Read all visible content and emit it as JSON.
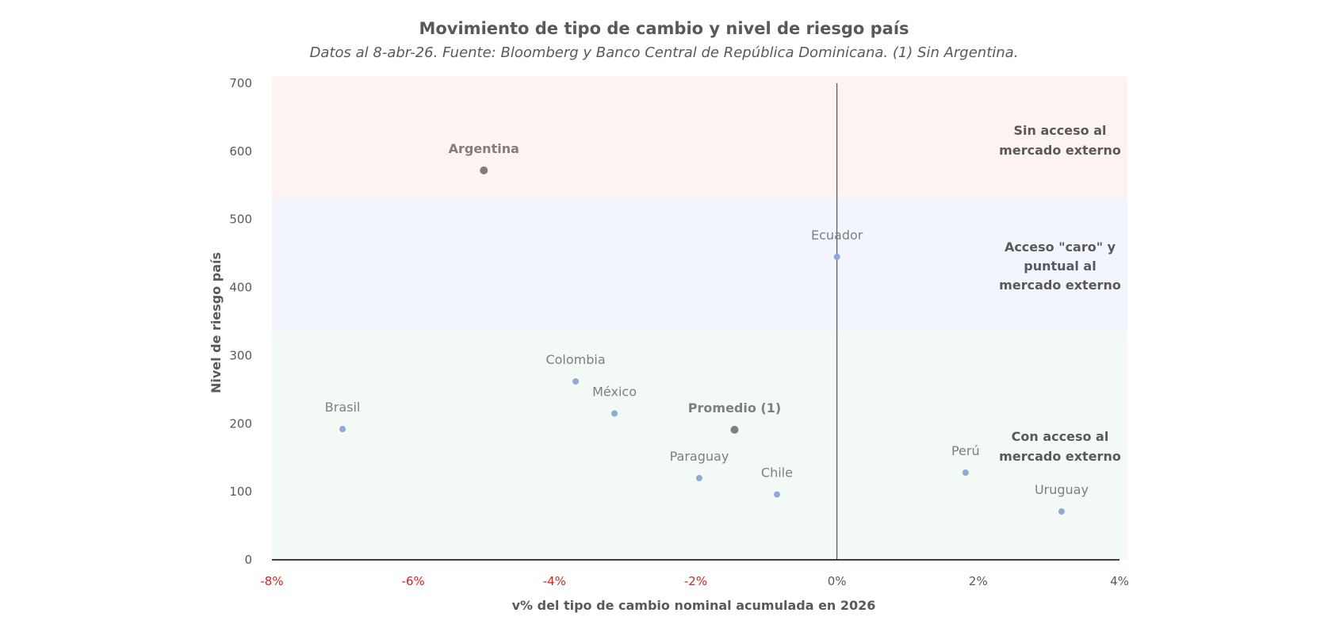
{
  "chart_data": {
    "type": "scatter",
    "title": "Movimiento de tipo de cambio y nivel de riesgo país",
    "subtitle": "Datos al 8-abr-26. Fuente: Bloomberg y Banco Central de República Dominicana. (1) Sin Argentina.",
    "xlabel": "v% del tipo de cambio nominal acumulada en 2026",
    "ylabel": "Nivel de riesgo país",
    "xlim": [
      -8,
      4
    ],
    "ylim": [
      0,
      700
    ],
    "x_ticks": [
      -8,
      -6,
      -4,
      -2,
      0,
      2,
      4
    ],
    "x_tick_labels": [
      "-8%",
      "-6%",
      "-4%",
      "-2%",
      "0%",
      "2%",
      "4%"
    ],
    "y_ticks": [
      0,
      100,
      200,
      300,
      400,
      500,
      600,
      700
    ],
    "y_tick_labels": [
      "0",
      "100",
      "200",
      "300",
      "400",
      "500",
      "600",
      "700"
    ],
    "zones": [
      {
        "name": "Sin acceso al mercado externo",
        "label_lines": [
          "Sin acceso al",
          "mercado externo"
        ],
        "y_from": 530,
        "y_to": 710,
        "color": "#fdf3f0"
      },
      {
        "name": "Acceso caro y puntual al mercado externo",
        "label_lines": [
          "Acceso \"caro\" y",
          "puntual al",
          "mercado externo"
        ],
        "y_from": 335,
        "y_to": 530,
        "color": "#f3f5fc"
      },
      {
        "name": "Con acceso al mercado externo",
        "label_lines": [
          "Con acceso al",
          "mercado externo"
        ],
        "y_from": 0,
        "y_to": 335,
        "color": "#f3f9f4"
      }
    ],
    "points": [
      {
        "label": "Argentina",
        "x": -5.0,
        "y": 572,
        "highlight": true
      },
      {
        "label": "Ecuador",
        "x": 0.0,
        "y": 445,
        "highlight": false
      },
      {
        "label": "Colombia",
        "x": -3.7,
        "y": 262,
        "highlight": false
      },
      {
        "label": "México",
        "x": -3.15,
        "y": 215,
        "highlight": false
      },
      {
        "label": "Brasil",
        "x": -7.0,
        "y": 192,
        "highlight": false
      },
      {
        "label": "Promedio (1)",
        "x": -1.45,
        "y": 191,
        "highlight": true
      },
      {
        "label": "Paraguay",
        "x": -1.95,
        "y": 120,
        "highlight": false
      },
      {
        "label": "Chile",
        "x": -0.85,
        "y": 96,
        "highlight": false
      },
      {
        "label": "Perú",
        "x": 1.82,
        "y": 128,
        "highlight": false
      },
      {
        "label": "Uruguay",
        "x": 3.18,
        "y": 71,
        "highlight": false
      }
    ],
    "colors": {
      "point": "#8eaadb",
      "highlight_point": "#7f7f7f",
      "axis": "#000000",
      "tick_label_negative": "#e0201b",
      "tick_label": "#595959",
      "label_text": "#7f7f7f",
      "zone_label_text": "#595959"
    }
  }
}
